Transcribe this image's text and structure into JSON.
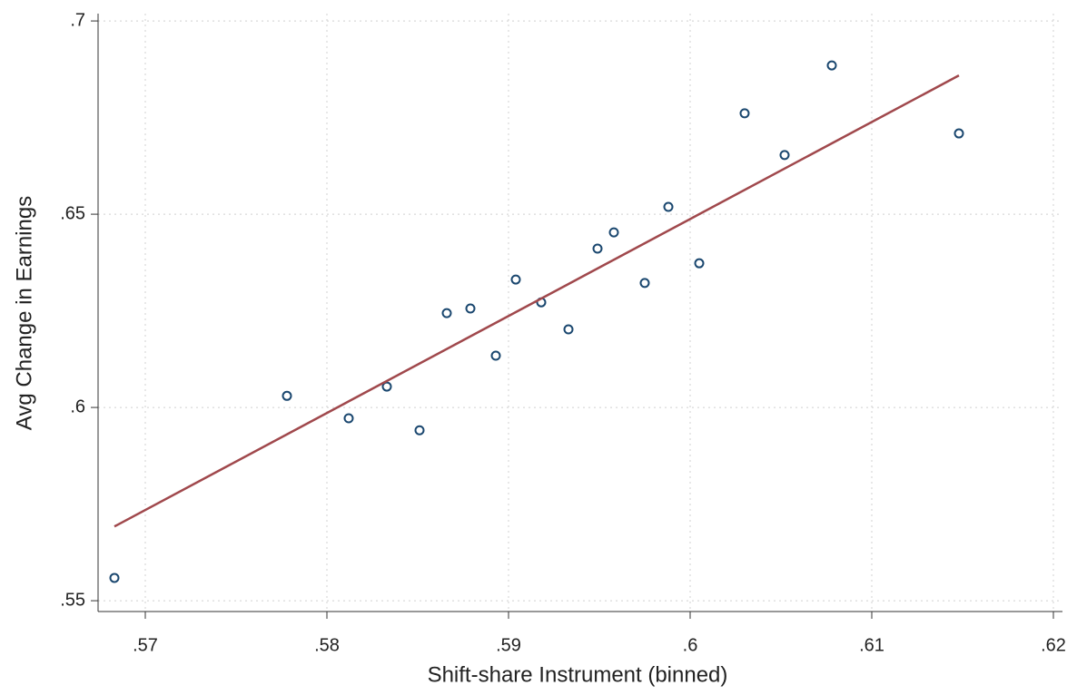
{
  "chart_data": {
    "type": "scatter",
    "x_label": "Shift-share Instrument (binned)",
    "y_label": "Avg Change in Earnings",
    "xlim": [
      0.5674,
      0.6205
    ],
    "ylim": [
      0.5472,
      0.7019
    ],
    "xticks": [
      {
        "value": 0.57,
        "label": ".57"
      },
      {
        "value": 0.58,
        "label": ".58"
      },
      {
        "value": 0.59,
        "label": ".59"
      },
      {
        "value": 0.6,
        "label": ".6"
      },
      {
        "value": 0.61,
        "label": ".61"
      },
      {
        "value": 0.62,
        "label": ".62"
      }
    ],
    "yticks": [
      {
        "value": 0.55,
        "label": ".55"
      },
      {
        "value": 0.6,
        "label": ".6"
      },
      {
        "value": 0.65,
        "label": ".65"
      },
      {
        "value": 0.7,
        "label": ".7"
      }
    ],
    "grid": true,
    "series": [
      {
        "type": "scatter",
        "color": "#1a476f",
        "x": [
          0.5683,
          0.5778,
          0.5812,
          0.5833,
          0.5851,
          0.5866,
          0.5879,
          0.5893,
          0.5904,
          0.5918,
          0.5933,
          0.5949,
          0.5958,
          0.5975,
          0.5988,
          0.6005,
          0.603,
          0.6052,
          0.6078,
          0.6148
        ],
        "values": [
          0.5559,
          0.603,
          0.5972,
          0.6054,
          0.5941,
          0.6244,
          0.6256,
          0.6134,
          0.6331,
          0.6272,
          0.6202,
          0.6411,
          0.6453,
          0.6322,
          0.6519,
          0.6373,
          0.6761,
          0.6653,
          0.6885,
          0.6709
        ]
      },
      {
        "type": "line",
        "color": "#a0484c",
        "x": [
          0.5683,
          0.6148
        ],
        "values": [
          0.5692,
          0.6859
        ]
      }
    ]
  }
}
